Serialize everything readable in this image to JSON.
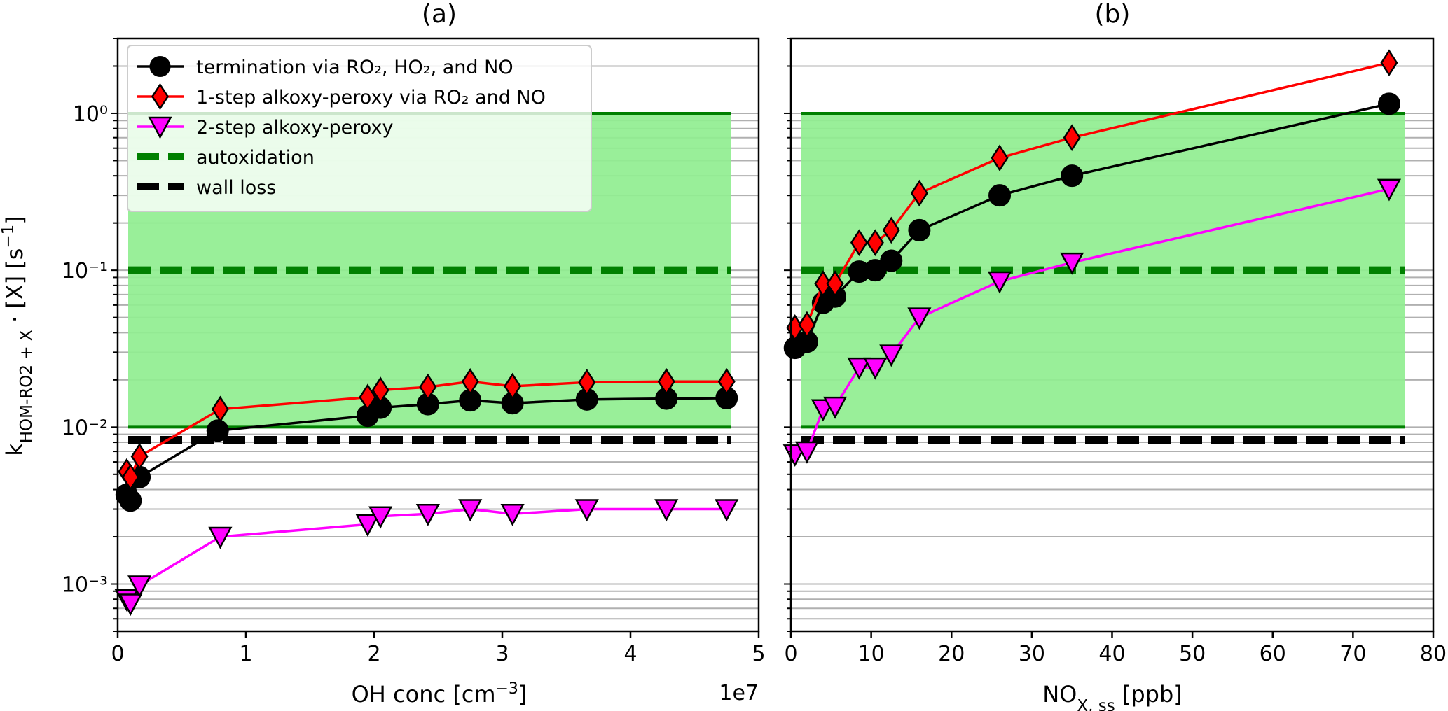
{
  "chart_data": [
    {
      "panel": "a",
      "type": "line",
      "title": "(a)",
      "xlabel": "OH conc [cm⁻³]",
      "ylabel": "k_{HOM-RO2+X} · [X] [s⁻¹]",
      "x_offset_label": "1e7",
      "xlim": [
        0,
        5
      ],
      "ylim": [
        0.0005,
        3
      ],
      "yscale": "log",
      "grid": "y-minor-horizontal",
      "xticks": [
        0,
        1,
        2,
        3,
        4,
        5
      ],
      "xtick_labels": [
        "0",
        "1",
        "2",
        "3",
        "4",
        "5"
      ],
      "ytick_labels": [
        "10⁻³",
        "10⁻²",
        "10⁻¹",
        "10⁰"
      ],
      "legend_position": "top-left",
      "x_units": "1e7 cm^-3",
      "series": [
        {
          "name": "termination via RO₂, HO₂, and NO",
          "color": "#000000",
          "marker": "circle",
          "x": [
            0.07,
            0.1,
            0.17,
            0.78,
            1.95,
            2.05,
            2.42,
            2.75,
            3.08,
            3.66,
            4.28,
            4.75
          ],
          "y": [
            0.0037,
            0.0034,
            0.0048,
            0.0095,
            0.0118,
            0.0133,
            0.014,
            0.0148,
            0.0142,
            0.015,
            0.0152,
            0.0153
          ]
        },
        {
          "name": "1-step alkoxy-peroxy via RO₂ and NO",
          "color": "#ff0000",
          "marker": "diamond",
          "x": [
            0.07,
            0.1,
            0.17,
            0.8,
            1.95,
            2.05,
            2.42,
            2.75,
            3.08,
            3.66,
            4.28,
            4.75
          ],
          "y": [
            0.0052,
            0.0048,
            0.0065,
            0.013,
            0.0155,
            0.0172,
            0.018,
            0.0195,
            0.0182,
            0.0193,
            0.0195,
            0.0195
          ]
        },
        {
          "name": "2-step alkoxy-peroxy",
          "color": "#ff00ff",
          "marker": "triangle-down",
          "x": [
            0.07,
            0.1,
            0.17,
            0.8,
            1.95,
            2.05,
            2.42,
            2.75,
            3.08,
            3.66,
            4.28,
            4.75
          ],
          "y": [
            0.0008,
            0.00075,
            0.00098,
            0.002,
            0.0024,
            0.0027,
            0.0028,
            0.003,
            0.0028,
            0.003,
            0.003,
            0.003
          ]
        }
      ],
      "reference_lines": [
        {
          "name": "autoxidation",
          "color": "#008000",
          "style": "dashed",
          "y": 0.1
        },
        {
          "name": "wall loss",
          "color": "#000000",
          "style": "dashed",
          "y": 0.0083
        }
      ],
      "shaded_band": {
        "color": "#90ee90",
        "edge_color": "#008000",
        "y_min": 0.01,
        "y_max": 1.0
      }
    },
    {
      "panel": "b",
      "type": "line",
      "title": "(b)",
      "xlabel": "NO_{X, ss} [ppb]",
      "xlim": [
        0,
        80
      ],
      "ylim": [
        0.0005,
        3
      ],
      "yscale": "log",
      "grid": "y-minor-horizontal",
      "xticks": [
        0,
        10,
        20,
        30,
        40,
        50,
        60,
        70,
        80
      ],
      "xtick_labels": [
        "0",
        "10",
        "20",
        "30",
        "40",
        "50",
        "60",
        "70",
        "80"
      ],
      "series": [
        {
          "name": "termination via RO₂, HO₂, and NO",
          "color": "#000000",
          "marker": "circle",
          "x": [
            0.5,
            2,
            4,
            5.5,
            8.5,
            10.5,
            12.5,
            16,
            26,
            35,
            74.5
          ],
          "y": [
            0.032,
            0.035,
            0.062,
            0.068,
            0.098,
            0.1,
            0.115,
            0.18,
            0.3,
            0.4,
            1.15
          ]
        },
        {
          "name": "1-step alkoxy-peroxy via RO₂ and NO",
          "color": "#ff0000",
          "marker": "diamond",
          "x": [
            0.5,
            2,
            4,
            5.5,
            8.5,
            10.5,
            12.5,
            16,
            26,
            35,
            74.5
          ],
          "y": [
            0.043,
            0.045,
            0.082,
            0.082,
            0.15,
            0.15,
            0.18,
            0.31,
            0.52,
            0.7,
            2.1
          ]
        },
        {
          "name": "2-step alkoxy-peroxy",
          "color": "#ff00ff",
          "marker": "triangle-down",
          "x": [
            0.5,
            2,
            4,
            5.5,
            8.5,
            10.5,
            12.5,
            16,
            26,
            35,
            74.5
          ],
          "y": [
            0.0067,
            0.007,
            0.013,
            0.0135,
            0.024,
            0.024,
            0.029,
            0.05,
            0.085,
            0.112,
            0.33
          ]
        }
      ],
      "reference_lines": [
        {
          "name": "autoxidation",
          "color": "#008000",
          "style": "dashed",
          "y": 0.1
        },
        {
          "name": "wall loss",
          "color": "#000000",
          "style": "dashed",
          "y": 0.0083
        }
      ],
      "shaded_band": {
        "color": "#90ee90",
        "edge_color": "#008000",
        "y_min": 0.01,
        "y_max": 1.0
      }
    }
  ]
}
